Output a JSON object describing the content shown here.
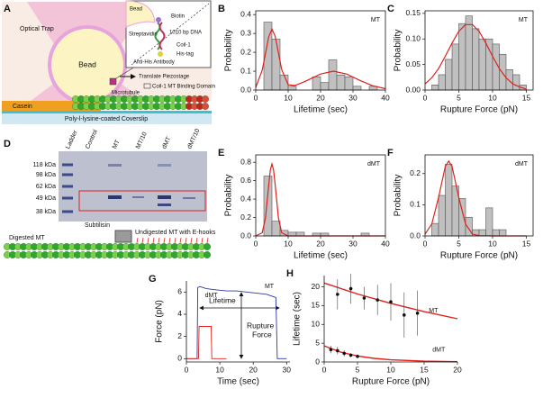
{
  "diagram_a": {
    "panel": "A",
    "optical_trap": "Optical Trap",
    "bead": "Bead",
    "microtubule": "Microtubule",
    "piezostage": "Translate Piezostage",
    "binding_domain": "Coil-1 MT Binding Domain",
    "casein": "Casein",
    "coverslip": "Poly-l-lysine-coated Coverslip",
    "inset": {
      "bead": "Bead",
      "biotin": "Biotin",
      "streptavidin": "Streptavidin",
      "dna": "1010 bp DNA",
      "coil": "Coil-1",
      "his_tag": "His-tag",
      "antibody": "Anti-His Antibody"
    }
  },
  "diagram_d": {
    "panel": "D",
    "lanes": [
      "Ladder",
      "Control",
      "MT",
      "MT/10",
      "dMT",
      "dMT/10"
    ],
    "markers": [
      "118 kDa",
      "98 kDa",
      "62 kDa",
      "49 kDa",
      "38 kDa"
    ],
    "subtilisin": "Subtilisin",
    "digested": "Digested MT",
    "undigested": "Undigested MT with E-hooks"
  },
  "chart_data": [
    {
      "panel": "B",
      "type": "histogram",
      "annotation": "MT",
      "xlabel": "Lifetime (sec)",
      "ylabel": "Probability",
      "color": "#c0c0c0",
      "box": true,
      "bins": [
        0,
        2.5,
        5,
        7.5,
        10,
        12.5,
        15,
        17.5,
        20,
        22.5,
        25,
        27.5,
        30,
        32.5,
        35,
        37.5
      ],
      "values": [
        0,
        0.36,
        0.27,
        0.08,
        0.02,
        0,
        0,
        0.07,
        0.04,
        0.16,
        0.08,
        0.07,
        0.02,
        0,
        0.02
      ],
      "fit": {
        "color": "#e0201b",
        "x": [
          0,
          2,
          3,
          4,
          5,
          6,
          7,
          8,
          10,
          12,
          15,
          20,
          24,
          28,
          32,
          36,
          40
        ],
        "values": [
          0.014,
          0.105,
          0.194,
          0.282,
          0.323,
          0.285,
          0.197,
          0.109,
          0.028,
          0.024,
          0.044,
          0.085,
          0.1,
          0.085,
          0.052,
          0.023,
          0.007
        ]
      },
      "xlim": [
        0,
        40
      ],
      "xticks": [
        0,
        10,
        20,
        30,
        40
      ],
      "ylim": [
        0,
        0.42
      ],
      "yticks": [
        {
          "value": 0,
          "label": "0.0"
        },
        0.1,
        0.2,
        0.3,
        0.4
      ]
    },
    {
      "panel": "C",
      "type": "histogram",
      "annotation": "MT",
      "xlabel": "Rupture Force (pN)",
      "ylabel": "Probability",
      "color": "#c0c0c0",
      "box": true,
      "bins": [
        1,
        2,
        3,
        4,
        5,
        6,
        7,
        8,
        9,
        10,
        11,
        12,
        13,
        14,
        15
      ],
      "values": [
        0.01,
        0.03,
        0.06,
        0.09,
        0.13,
        0.145,
        0.12,
        0.1,
        0.1,
        0.09,
        0.07,
        0.04,
        0.03,
        0.01
      ],
      "fit": {
        "color": "#e0201b",
        "x": [
          0,
          1,
          2,
          3,
          4,
          5,
          6,
          7,
          8,
          9,
          10,
          11,
          12,
          13,
          14,
          15
        ],
        "values": [
          0.012,
          0.024,
          0.042,
          0.066,
          0.092,
          0.115,
          0.128,
          0.128,
          0.115,
          0.092,
          0.066,
          0.042,
          0.024,
          0.012,
          0.006,
          0.002
        ]
      },
      "xlim": [
        0,
        16
      ],
      "xticks": [
        0,
        5,
        10,
        15
      ],
      "ylim": [
        0,
        0.155
      ],
      "yticks": [
        {
          "value": 0,
          "label": "0.00"
        },
        0.05,
        {
          "value": 0.1,
          "label": "0.10"
        },
        0.15
      ]
    },
    {
      "panel": "E",
      "type": "histogram",
      "annotation": "dMT",
      "xlabel": "Lifetime (sec)",
      "ylabel": "Probability",
      "color": "#c0c0c0",
      "box": true,
      "bins": [
        0,
        2.5,
        5,
        7.5,
        10,
        12.5,
        15,
        17.5,
        20,
        22.5,
        25,
        27.5,
        30,
        32.5,
        35
      ],
      "values": [
        0,
        0.65,
        0.16,
        0.06,
        0.04,
        0.04,
        0,
        0.03,
        0.03,
        0,
        0,
        0,
        0,
        0.03
      ],
      "fit": {
        "color": "#e0201b",
        "x": [
          0,
          2,
          3,
          4,
          4.5,
          5,
          5.5,
          6,
          7,
          8,
          10,
          20,
          40
        ],
        "values": [
          0,
          0.034,
          0.195,
          0.551,
          0.715,
          0.78,
          0.715,
          0.551,
          0.195,
          0.034,
          0,
          0,
          0
        ]
      },
      "xlim": [
        0,
        40
      ],
      "xticks": [
        0,
        10,
        20,
        30,
        40
      ],
      "ylim": [
        0,
        0.88
      ],
      "yticks": [
        {
          "value": 0,
          "label": "0.0"
        },
        0.2,
        0.4,
        0.6,
        0.8
      ]
    },
    {
      "panel": "F",
      "type": "histogram",
      "annotation": "dMT",
      "xlabel": "Rupture Force (pN)",
      "ylabel": "Probability",
      "color": "#c0c0c0",
      "box": true,
      "bins": [
        1,
        2,
        3,
        4,
        5,
        6,
        7,
        8,
        9,
        10,
        11,
        12
      ],
      "values": [
        0.04,
        0.13,
        0.23,
        0.16,
        0.12,
        0.06,
        0.02,
        0.02,
        0.09,
        0.02,
        0.02
      ],
      "fit": {
        "color": "#e0201b",
        "x": [
          0,
          1,
          2,
          3,
          3.5,
          4,
          5,
          6,
          7,
          8,
          10,
          15
        ],
        "values": [
          0.006,
          0.038,
          0.123,
          0.223,
          0.24,
          0.223,
          0.123,
          0.038,
          0.006,
          0.001,
          0,
          0
        ]
      },
      "xlim": [
        0,
        16
      ],
      "xticks": [
        0,
        5,
        10,
        15
      ],
      "ylim": [
        0,
        0.26
      ],
      "yticks": [
        {
          "value": 0,
          "label": "0.0"
        },
        0.1,
        0.2
      ]
    },
    {
      "panel": "G",
      "type": "line",
      "xlabel": "Time (sec)",
      "ylabel": "Force (pN)",
      "annotations": {
        "lifetime": "Lifetime",
        "rupture_force": [
          "Rupture",
          "Force"
        ]
      },
      "series": [
        {
          "name": "MT",
          "color": "#2b3a9e",
          "x": [
            0,
            3.2,
            3.4,
            4,
            6,
            9,
            12,
            15,
            18,
            21,
            24,
            26.8,
            27.2,
            30
          ],
          "values": [
            0,
            0,
            6.4,
            6.5,
            6.3,
            6.2,
            6.1,
            6.1,
            6,
            5.9,
            5.8,
            5.5,
            0,
            0
          ]
        },
        {
          "name": "dMT",
          "color": "#e0201b",
          "x": [
            0,
            3.6,
            3.8,
            7.4,
            7.6,
            12
          ],
          "values": [
            0,
            0,
            2.9,
            2.9,
            0,
            0
          ]
        }
      ],
      "xlim": [
        0,
        31
      ],
      "xticks": [
        0,
        10,
        20,
        30
      ],
      "ylim": [
        -0.3,
        7
      ],
      "yticks": [
        0,
        2,
        4,
        6
      ]
    },
    {
      "panel": "H",
      "type": "scatter",
      "xlabel": "Rupture Force (pN)",
      "ylabel": "Lifetime (sec)",
      "series": [
        {
          "name": "MT",
          "color": "#e0201b",
          "x": [
            2,
            4,
            6,
            8,
            10,
            12,
            14
          ],
          "values": [
            18,
            19.5,
            17,
            16.5,
            16,
            12.5,
            13
          ],
          "errors": [
            4,
            4,
            3,
            4,
            5,
            6,
            6
          ],
          "fit": {
            "x": [
              0,
              5,
              10,
              15,
              20
            ],
            "values": [
              21,
              18.1,
              15.6,
              13.4,
              11.5
            ]
          }
        },
        {
          "name": "dMT",
          "color": "#e0201b",
          "x": [
            1,
            2,
            3,
            4,
            5
          ],
          "values": [
            3.3,
            3,
            2.3,
            1.8,
            1.5
          ],
          "errors": [
            1,
            1,
            0.8,
            0.5,
            0.5
          ],
          "fit": {
            "x": [
              0,
              2.5,
              5,
              7.5,
              10,
              15,
              20
            ],
            "values": [
              4.3,
              2.6,
              1.6,
              0.96,
              0.58,
              0.21,
              0.08
            ]
          }
        }
      ],
      "xlim": [
        0,
        20
      ],
      "xticks": [
        0,
        5,
        10,
        15,
        20
      ],
      "ylim": [
        0,
        23
      ],
      "yticks": [
        0,
        5,
        10,
        15,
        20
      ]
    }
  ]
}
